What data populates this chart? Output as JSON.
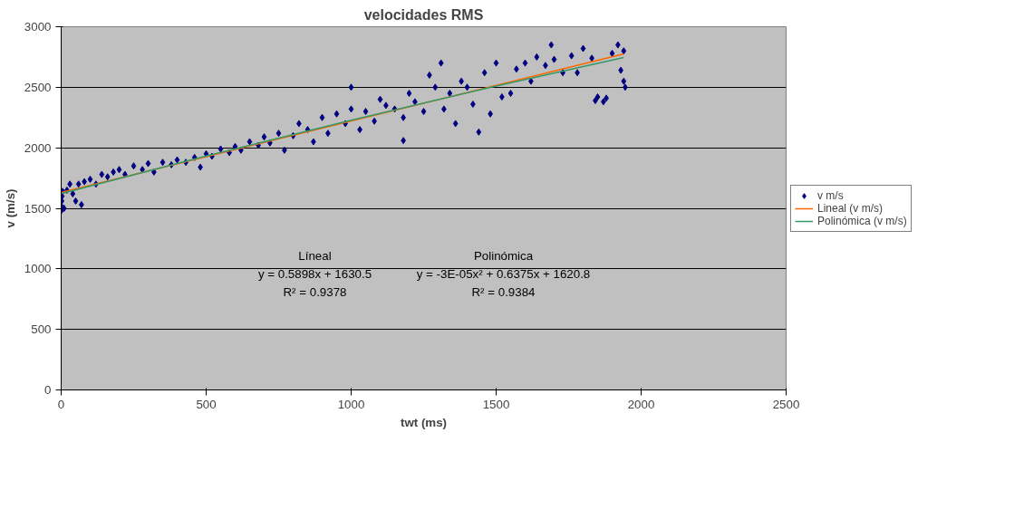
{
  "chart_data": {
    "type": "scatter",
    "title": "velocidades RMS",
    "xlabel": "twt (ms)",
    "ylabel": "v (m/s)",
    "xlim": [
      0,
      2500
    ],
    "xticks": [
      0,
      500,
      1000,
      1500,
      2000,
      2500
    ],
    "ylim": [
      0,
      3000
    ],
    "yticks": [
      0,
      500,
      1000,
      1500,
      2000,
      2500,
      3000
    ],
    "grid": "y",
    "legend": "right",
    "annotations": [
      "Líneal\ny = 0.5898x + 1630.5\nR² = 0.9378",
      "Polinómica\ny = -3E-05x² + 0.6375x + 1620.8\nR² = 0.9384"
    ],
    "series": [
      {
        "name": "v m/s",
        "color": "#000080",
        "marker": "diamond",
        "x": [
          0,
          0,
          2,
          3,
          5,
          10,
          20,
          30,
          40,
          50,
          60,
          70,
          80,
          100,
          120,
          140,
          160,
          180,
          200,
          220,
          250,
          280,
          300,
          320,
          350,
          380,
          400,
          430,
          460,
          480,
          500,
          520,
          550,
          580,
          600,
          620,
          650,
          680,
          700,
          720,
          750,
          770,
          800,
          820,
          850,
          870,
          900,
          920,
          950,
          980,
          1000,
          1000,
          1030,
          1050,
          1080,
          1100,
          1120,
          1150,
          1180,
          1180,
          1200,
          1220,
          1250,
          1270,
          1290,
          1310,
          1320,
          1340,
          1360,
          1380,
          1400,
          1420,
          1440,
          1460,
          1480,
          1500,
          1520,
          1550,
          1570,
          1600,
          1620,
          1640,
          1670,
          1690,
          1700,
          1730,
          1760,
          1780,
          1800,
          1830,
          1842,
          1850,
          1870,
          1880,
          1900,
          1920,
          1930,
          1940,
          1945,
          1940
        ],
        "values": [
          1480,
          1520,
          1560,
          1600,
          1640,
          1500,
          1650,
          1700,
          1620,
          1560,
          1700,
          1530,
          1720,
          1740,
          1700,
          1780,
          1760,
          1800,
          1820,
          1780,
          1850,
          1820,
          1870,
          1800,
          1880,
          1860,
          1900,
          1880,
          1920,
          1840,
          1950,
          1930,
          1990,
          1960,
          2010,
          1980,
          2050,
          2020,
          2090,
          2040,
          2120,
          1980,
          2100,
          2200,
          2150,
          2050,
          2250,
          2120,
          2280,
          2200,
          2500,
          2320,
          2150,
          2300,
          2220,
          2400,
          2350,
          2320,
          2250,
          2060,
          2450,
          2380,
          2300,
          2600,
          2500,
          2700,
          2320,
          2450,
          2200,
          2550,
          2500,
          2360,
          2130,
          2620,
          2280,
          2700,
          2420,
          2450,
          2650,
          2700,
          2550,
          2750,
          2680,
          2850,
          2730,
          2620,
          2760,
          2620,
          2820,
          2740,
          2390,
          2420,
          2380,
          2410,
          2780,
          2850,
          2640,
          2550,
          2500,
          2800
        ]
      },
      {
        "name": "Lineal (v m/s)",
        "color": "#ff6600",
        "type": "line",
        "x": [
          0,
          1940
        ],
        "values": [
          1631,
          2775
        ]
      },
      {
        "name": "Polinómica (v m/s)",
        "color": "#339966",
        "type": "line",
        "x": [
          0,
          500,
          1000,
          1500,
          1940
        ],
        "values": [
          1621,
          1932,
          2228,
          2510,
          2745
        ]
      }
    ]
  }
}
